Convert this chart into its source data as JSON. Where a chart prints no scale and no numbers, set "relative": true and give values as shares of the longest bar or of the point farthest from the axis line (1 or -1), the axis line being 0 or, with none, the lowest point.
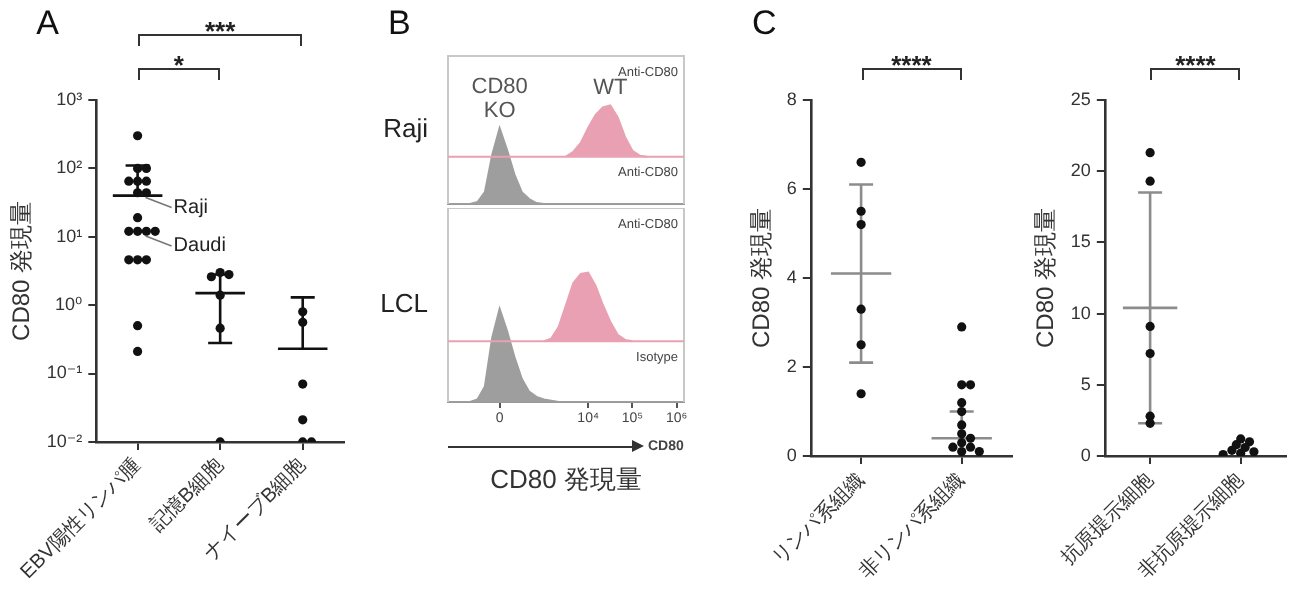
{
  "chart_data": [
    {
      "type": "scatter",
      "title": "A",
      "ylabel": "CD80 発現量",
      "categories": [
        "EBV陽性リンパ腫",
        "記憶B細胞",
        "ナイーブB細胞"
      ],
      "log": "y",
      "ylim": [
        0.01,
        1000
      ],
      "yticks": [
        {
          "value": 0.01,
          "label": "10⁻²"
        },
        {
          "value": 0.1,
          "label": "10⁻¹"
        },
        {
          "value": 1,
          "label": "10⁰"
        },
        {
          "value": 10,
          "label": "10¹"
        },
        {
          "value": 100,
          "label": "10²"
        },
        {
          "value": 1000,
          "label": "10³"
        }
      ],
      "grid": false,
      "legend": false,
      "marker": "circle",
      "series": [
        {
          "color": "#111111",
          "x": [
            "EBV陽性リンパ腫",
            "EBV陽性リンパ腫",
            "EBV陽性リンパ腫",
            "EBV陽性リンパ腫",
            "EBV陽性リンパ腫",
            "EBV陽性リンパ腫",
            "EBV陽性リンパ腫",
            "EBV陽性リンパ腫",
            "EBV陽性リンパ腫",
            "EBV陽性リンパ腫",
            "EBV陽性リンパ腫",
            "EBV陽性リンパ腫",
            "EBV陽性リンパ腫",
            "EBV陽性リンパ腫",
            "EBV陽性リンパ腫",
            "EBV陽性リンパ腫",
            "EBV陽性リンパ腫",
            "EBV陽性リンパ腫",
            "記憶B細胞",
            "記憶B細胞",
            "記憶B細胞",
            "記憶B細胞",
            "記憶B細胞",
            "記憶B細胞",
            "ナイーブB細胞",
            "ナイーブB細胞",
            "ナイーブB細胞",
            "ナイーブB細胞",
            "ナイーブB細胞",
            "ナイーブB細胞"
          ],
          "values": [
            300,
            100,
            100,
            65,
            65,
            65,
            44,
            44,
            19,
            12,
            12,
            12,
            12,
            4.6,
            4.6,
            4.6,
            0.5,
            0.21,
            3,
            2.8,
            2.6,
            1.4,
            0.46,
            0.01,
            0.8,
            0.56,
            0.07,
            0.021,
            0.01,
            0.01
          ]
        },
        {
          "type": "box",
          "color": "#111111",
          "boxes": [
            {
              "low": 40,
              "q1": 40,
              "median": 40,
              "q3": 40,
              "high": 110
            },
            {
              "low": 0.28,
              "q1": 1.5,
              "median": 1.5,
              "q3": 1.5,
              "high": 2.8
            },
            {
              "low": 0.23,
              "q1": 0.23,
              "median": 0.23,
              "q3": 0.23,
              "high": 1.3
            }
          ]
        }
      ],
      "annotations": [
        "*",
        "***",
        {
          "text": "Raji",
          "x": "EBV陽性リンパ腫",
          "y": 40
        },
        {
          "text": "Daudi",
          "x": "EBV陽性リンパ腫",
          "y": 11
        }
      ]
    },
    {
      "type": "area",
      "title": "B",
      "ylabel": "Raji",
      "relative": true,
      "tick_labels": false,
      "legend": false,
      "categories": [
        null,
        null,
        null,
        null,
        null,
        null,
        null,
        "0",
        null,
        null,
        null,
        null,
        null,
        null,
        null,
        null,
        null,
        null,
        null,
        "10⁴",
        null,
        null,
        null,
        null,
        null,
        "10⁵",
        null,
        null,
        null,
        null,
        null,
        "10⁶",
        null
      ],
      "ref_lines": [
        {
          "axis": "y",
          "value": 0.48,
          "color": "#e8a0b2"
        }
      ],
      "series": [
        {
          "name": "CD80 KO",
          "color": "#9e9e9e",
          "values": [
            0,
            0,
            0,
            0,
            0.02,
            0.12,
            0.5,
            0.77,
            0.55,
            0.3,
            0.12,
            0.05,
            0.01,
            0,
            0,
            0,
            0,
            0,
            0,
            0,
            0,
            0,
            0,
            0,
            0,
            0,
            0,
            0,
            0,
            0,
            0,
            0,
            0
          ]
        },
        {
          "name": "WT",
          "color": "#e8a0b2",
          "values": [
            null,
            null,
            null,
            null,
            null,
            null,
            null,
            null,
            null,
            null,
            null,
            null,
            null,
            null,
            null,
            null,
            0.48,
            0.53,
            0.62,
            0.77,
            0.9,
            0.98,
            1,
            0.88,
            0.68,
            0.54,
            0.49,
            0.48,
            null,
            null,
            null,
            null,
            null
          ]
        }
      ],
      "annotations": [
        "Anti-CD80",
        "Anti-CD80"
      ]
    },
    {
      "type": "area",
      "ylabel": "LCL",
      "xlabel": "CD80 発現量",
      "relative": true,
      "tick_labels": "x",
      "legend": false,
      "categories": [
        null,
        null,
        null,
        null,
        null,
        null,
        null,
        "0",
        null,
        null,
        null,
        null,
        null,
        null,
        null,
        null,
        null,
        null,
        null,
        "10⁴",
        null,
        null,
        null,
        null,
        null,
        "10⁵",
        null,
        null,
        null,
        null,
        null,
        "10⁶",
        null
      ],
      "ref_lines": [
        {
          "axis": "y",
          "value": 0.47,
          "color": "#e8a0b2"
        }
      ],
      "series": [
        {
          "color": "#9e9e9e",
          "values": [
            0,
            0,
            0,
            0,
            0.02,
            0.12,
            0.5,
            0.72,
            0.55,
            0.35,
            0.18,
            0.08,
            0.04,
            0.02,
            0.01,
            0,
            0,
            0,
            0,
            0,
            0,
            0,
            0,
            0,
            0,
            0,
            0,
            0,
            0,
            0,
            0,
            0,
            0
          ]
        },
        {
          "color": "#e8a0b2",
          "values": [
            null,
            null,
            null,
            null,
            null,
            null,
            null,
            null,
            null,
            null,
            null,
            null,
            null,
            0.47,
            0.49,
            0.58,
            0.75,
            0.92,
            0.99,
            1,
            0.9,
            0.75,
            0.62,
            0.52,
            0.48,
            0.47,
            null,
            null,
            null,
            null,
            null,
            null,
            null
          ]
        }
      ],
      "annotations": [
        "Anti-CD80",
        "Isotype",
        "CD80"
      ]
    },
    {
      "type": "scatter",
      "title": "C",
      "ylabel": "CD80 発現量",
      "categories": [
        "リンパ系組織",
        "非リンパ系組織"
      ],
      "ylim": [
        0,
        8
      ],
      "yticks": [
        0,
        2,
        4,
        6,
        8
      ],
      "grid": false,
      "legend": false,
      "marker": "circle",
      "series": [
        {
          "color": "#111111",
          "x": [
            "リンパ系組織",
            "リンパ系組織",
            "リンパ系組織",
            "リンパ系組織",
            "リンパ系組織",
            "リンパ系組織",
            "非リンパ系組織",
            "非リンパ系組織",
            "非リンパ系組織",
            "非リンパ系組織",
            "非リンパ系組織",
            "非リンパ系組織",
            "非リンパ系組織",
            "非リンパ系組織",
            "非リンパ系組織",
            "非リンパ系組織",
            "非リンパ系組織",
            "非リンパ系組織",
            "非リンパ系組織"
          ],
          "values": [
            6.6,
            5.5,
            5.2,
            3.3,
            2.5,
            1.4,
            2.9,
            1.6,
            1.6,
            1.2,
            1,
            0.7,
            0.5,
            0.4,
            0.3,
            0.2,
            0.2,
            0.1,
            0.1
          ]
        },
        {
          "type": "box",
          "color": "#8c8c8c",
          "boxes": [
            {
              "low": 2.1,
              "q1": 4.1,
              "median": 4.1,
              "q3": 4.1,
              "high": 6.1
            },
            {
              "low": 0.4,
              "q1": 0.4,
              "median": 0.4,
              "q3": 0.4,
              "high": 1
            }
          ]
        }
      ],
      "annotations": [
        "****"
      ]
    },
    {
      "type": "scatter",
      "ylabel": "CD80 発現量",
      "categories": [
        "抗原提示細胞",
        "非抗原提示細胞"
      ],
      "ylim": [
        0,
        25
      ],
      "yticks": [
        0,
        5,
        10,
        15,
        20,
        25
      ],
      "grid": false,
      "legend": false,
      "marker": "circle",
      "series": [
        {
          "color": "#111111",
          "x": [
            "抗原提示細胞",
            "抗原提示細胞",
            "抗原提示細胞",
            "抗原提示細胞",
            "抗原提示細胞",
            "抗原提示細胞",
            "非抗原提示細胞",
            "非抗原提示細胞",
            "非抗原提示細胞",
            "非抗原提示細胞",
            "非抗原提示細胞",
            "非抗原提示細胞",
            "非抗原提示細胞",
            "非抗原提示細胞"
          ],
          "values": [
            21.3,
            19.3,
            9.1,
            7.2,
            2.8,
            2.3,
            1.2,
            1,
            0.8,
            0.6,
            0.4,
            0.3,
            0.2,
            0.1
          ]
        },
        {
          "type": "box",
          "color": "#8c8c8c",
          "boxes": [
            {
              "low": 2.3,
              "q1": 10.4,
              "median": 10.4,
              "q3": 10.4,
              "high": 18.5
            },
            null
          ]
        }
      ],
      "annotations": [
        "****"
      ]
    }
  ]
}
